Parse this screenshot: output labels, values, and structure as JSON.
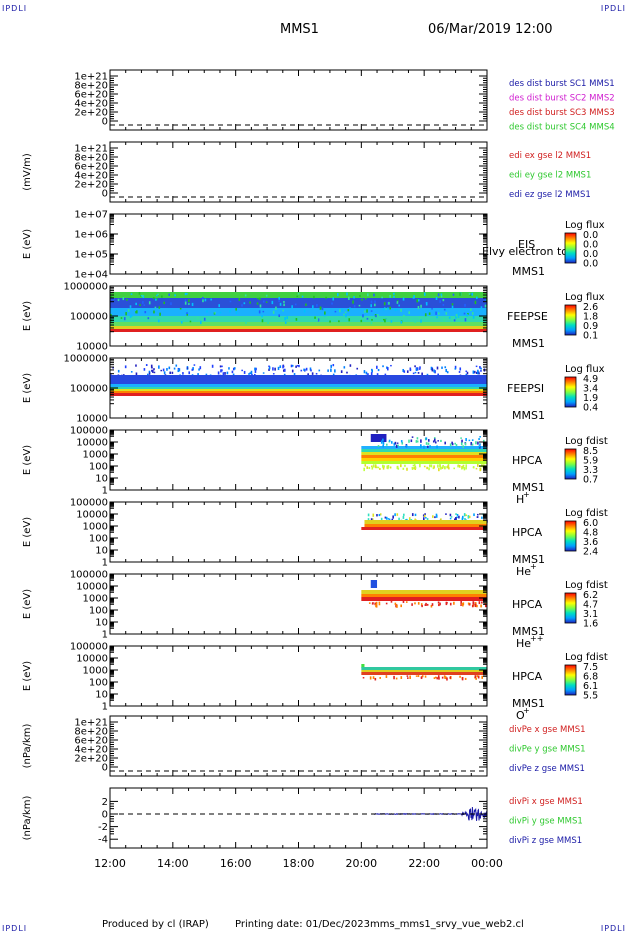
{
  "header": {
    "spacecraft": "MMS1",
    "datetime": "06/Mar/2019 12:00",
    "corner_label": "IPDLI"
  },
  "footer": {
    "produced_by": "Produced by cl (IRAP)",
    "printing_date": "Printing date: 01/Dec/2023",
    "filename": "mms_mms1_srvy_vue_web2.cl"
  },
  "chart_data": [
    {
      "id": "dist",
      "type": "line",
      "ylabel": "",
      "yticks": [
        "1e+21",
        "8e+20",
        "6e+20",
        "4e+20",
        "2e+20",
        "0"
      ],
      "zero_dashed": true,
      "legend": [
        {
          "text": "des dist burst SC1 MMS1",
          "color": "#1a1aa6"
        },
        {
          "text": "des dist burst SC2 MMS2",
          "color": "#d01ed0"
        },
        {
          "text": "des dist burst SC3 MMS3",
          "color": "#d01e1e"
        },
        {
          "text": "des dist burst SC4 MMS4",
          "color": "#2ec82e"
        }
      ]
    },
    {
      "id": "edi",
      "type": "line",
      "ylabel": "(mV/m)",
      "yticks": [
        "1e+21",
        "8e+20",
        "6e+20",
        "4e+20",
        "2e+20",
        "0"
      ],
      "zero_dashed": true,
      "legend": [
        {
          "text": "edi ex gse l2 MMS1",
          "color": "#d01e1e"
        },
        {
          "text": "edi ey gse l2 MMS1",
          "color": "#2ec82e"
        },
        {
          "text": "edi ez gse l2 MMS1",
          "color": "#1a1aa6"
        }
      ]
    },
    {
      "id": "eis",
      "type": "heatmap",
      "ylabel": "E (eV)",
      "yticks": [
        "1e+07",
        "1e+06",
        "1e+05",
        "1e+04"
      ],
      "labels": [
        "EIS",
        "MMS1"
      ],
      "overlay_text": "Elvy electron to",
      "colorbar": {
        "title": "Log flux",
        "ticks": [
          "0.0",
          "0.0",
          "0.0",
          "0.0"
        ]
      }
    },
    {
      "id": "feepse",
      "type": "heatmap",
      "ylabel": "E (eV)",
      "yticks": [
        "1000000",
        "100000",
        "10000"
      ],
      "labels": [
        "FEEPSE",
        "MMS1"
      ],
      "colorbar": {
        "title": "Log flux",
        "ticks": [
          "2.6",
          "1.8",
          "0.9",
          "0.1"
        ]
      }
    },
    {
      "id": "feepsi",
      "type": "heatmap",
      "ylabel": "E (eV)",
      "yticks": [
        "1000000",
        "100000",
        "10000"
      ],
      "labels": [
        "FEEPSI",
        "MMS1"
      ],
      "colorbar": {
        "title": "Log flux",
        "ticks": [
          "4.9",
          "3.4",
          "1.9",
          "0.4"
        ]
      }
    },
    {
      "id": "hpca_h",
      "type": "heatmap",
      "ylabel": "E (eV)",
      "yticks": [
        "100000",
        "10000",
        "1000",
        "100",
        "10",
        "1"
      ],
      "labels": [
        "HPCA",
        "MMS1"
      ],
      "species": "H",
      "species_sup": "+",
      "colorbar": {
        "title": "Log fdist",
        "ticks": [
          "8.5",
          "5.9",
          "3.3",
          "0.7"
        ]
      }
    },
    {
      "id": "hpca_he",
      "type": "heatmap",
      "ylabel": "E (eV)",
      "yticks": [
        "100000",
        "10000",
        "1000",
        "100",
        "10",
        "1"
      ],
      "labels": [
        "HPCA",
        "MMS1"
      ],
      "species": "He",
      "species_sup": "+",
      "colorbar": {
        "title": "Log fdist",
        "ticks": [
          "6.0",
          "4.8",
          "3.6",
          "2.4"
        ]
      }
    },
    {
      "id": "hpca_hepp",
      "type": "heatmap",
      "ylabel": "E (eV)",
      "yticks": [
        "100000",
        "10000",
        "1000",
        "100",
        "10",
        "1"
      ],
      "labels": [
        "HPCA",
        "MMS1"
      ],
      "species": "He",
      "species_sup": "++",
      "colorbar": {
        "title": "Log fdist",
        "ticks": [
          "6.2",
          "4.7",
          "3.1",
          "1.6"
        ]
      }
    },
    {
      "id": "hpca_o",
      "type": "heatmap",
      "ylabel": "E (eV)",
      "yticks": [
        "100000",
        "10000",
        "1000",
        "100",
        "10",
        "1"
      ],
      "labels": [
        "HPCA",
        "MMS1"
      ],
      "species": "O",
      "species_sup": "+",
      "colorbar": {
        "title": "Log fdist",
        "ticks": [
          "7.5",
          "6.8",
          "6.1",
          "5.5"
        ]
      }
    },
    {
      "id": "divpe",
      "type": "line",
      "ylabel": "(nPa/km)",
      "yticks": [
        "1e+21",
        "8e+20",
        "6e+20",
        "4e+20",
        "2e+20",
        "0"
      ],
      "zero_dashed": true,
      "legend": [
        {
          "text": "divPe x gse MMS1",
          "color": "#d01e1e"
        },
        {
          "text": "divPe y gse MMS1",
          "color": "#2ec82e"
        },
        {
          "text": "divPe z gse MMS1",
          "color": "#1a1aa6"
        }
      ]
    },
    {
      "id": "divpi",
      "type": "line",
      "ylabel": "(nPa/km)",
      "yticks": [
        "2",
        "0",
        "-2",
        "-4"
      ],
      "zero_dashed": true,
      "legend": [
        {
          "text": "divPi x gse MMS1",
          "color": "#d01e1e"
        },
        {
          "text": "divPi y gse MMS1",
          "color": "#2ec82e"
        },
        {
          "text": "divPi z gse MMS1",
          "color": "#1a1aa6"
        }
      ]
    }
  ],
  "xaxis": {
    "ticks": [
      "12:00",
      "14:00",
      "16:00",
      "18:00",
      "20:00",
      "22:00",
      "00:00"
    ],
    "start_hour": 12,
    "end_hour": 24
  },
  "colors": {
    "axis": "#000000",
    "colormap": [
      "#2020c0",
      "#00a0ff",
      "#00e0c0",
      "#80ff40",
      "#ffff00",
      "#ff8000",
      "#ff0000"
    ]
  }
}
